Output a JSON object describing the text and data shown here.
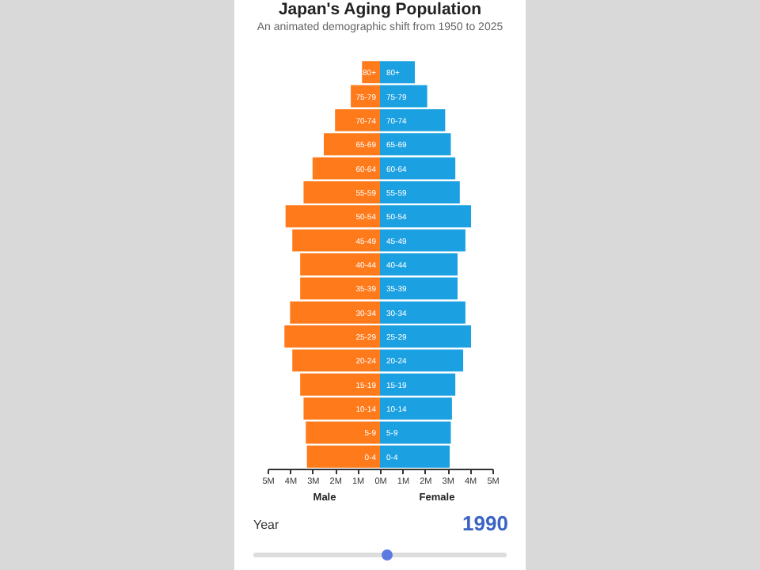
{
  "chart_data": [
    {
      "type": "bar",
      "orientation": "horizontal",
      "title": "Japan's Aging Population",
      "subtitle": "An animated demographic shift from 1950 to 2025",
      "xlabel": "Male",
      "categories": [
        "80+",
        "75-79",
        "70-74",
        "65-69",
        "60-64",
        "55-59",
        "50-54",
        "45-49",
        "40-44",
        "35-39",
        "30-34",
        "25-29",
        "20-24",
        "15-19",
        "10-14",
        "5-9",
        "0-4"
      ],
      "values": [
        0.8,
        1.3,
        2.0,
        2.5,
        3.0,
        3.4,
        4.2,
        3.9,
        3.55,
        3.55,
        4.0,
        4.25,
        3.9,
        3.55,
        3.4,
        3.3,
        3.25
      ],
      "color": "#ff7a1a",
      "xlim": [
        5,
        0
      ],
      "xticks": [
        {
          "value": 5,
          "label": "5M"
        },
        {
          "value": 4,
          "label": "4M"
        },
        {
          "value": 3,
          "label": "3M"
        },
        {
          "value": 2,
          "label": "2M"
        },
        {
          "value": 1,
          "label": "1M"
        },
        {
          "value": 0,
          "label": "0M"
        }
      ]
    },
    {
      "type": "bar",
      "orientation": "horizontal",
      "xlabel": "Female",
      "categories": [
        "80+",
        "75-79",
        "70-74",
        "65-69",
        "60-64",
        "55-59",
        "50-54",
        "45-49",
        "40-44",
        "35-39",
        "30-34",
        "25-29",
        "20-24",
        "15-19",
        "10-14",
        "5-9",
        "0-4"
      ],
      "values": [
        1.55,
        2.1,
        2.9,
        3.15,
        3.35,
        3.55,
        4.05,
        3.8,
        3.45,
        3.45,
        3.8,
        4.05,
        3.7,
        3.35,
        3.2,
        3.15,
        3.1
      ],
      "color": "#1ba1e2",
      "xlim": [
        0,
        5
      ],
      "xticks": [
        {
          "value": 0,
          "label": null
        },
        {
          "value": 1,
          "label": "1M"
        },
        {
          "value": 2,
          "label": "2M"
        },
        {
          "value": 3,
          "label": "3M"
        },
        {
          "value": 4,
          "label": "4M"
        },
        {
          "value": 5,
          "label": "5M"
        }
      ],
      "annotations": [
        "Year",
        "1990"
      ]
    }
  ]
}
